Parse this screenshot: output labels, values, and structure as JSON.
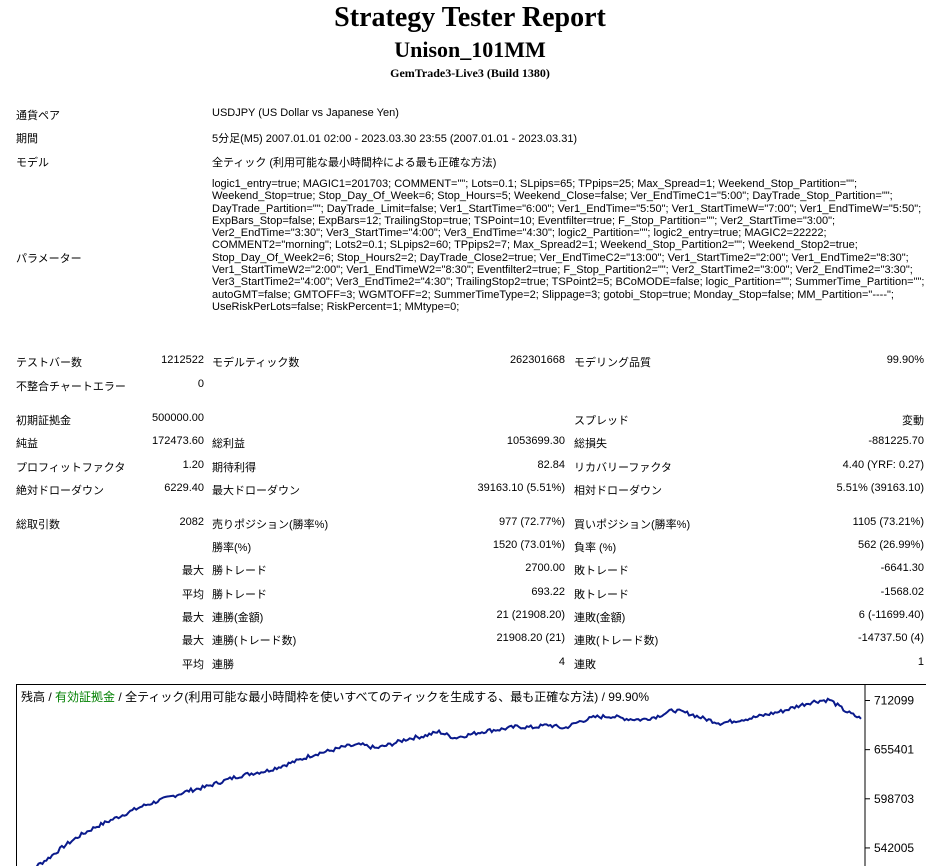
{
  "header": {
    "title": "Strategy Tester Report",
    "ea_name": "Unison_101MM",
    "server": "GemTrade3-Live3 (Build 1380)"
  },
  "info": [
    {
      "label": "通貨ペア",
      "value": "USDJPY (US Dollar vs Japanese Yen)"
    },
    {
      "label": "期間",
      "value": "5分足(M5) 2007.01.01 02:00 - 2023.03.30 23:55 (2007.01.01 - 2023.03.31)"
    },
    {
      "label": "モデル",
      "value": "全ティック (利用可能な最小時間枠による最も正確な方法)"
    }
  ],
  "params_label": "パラメーター",
  "params_text": "logic1_entry=true; MAGIC1=201703; COMMENT=\"\"; Lots=0.1; SLpips=65; TPpips=25; Max_Spread=1; Weekend_Stop_Partition=\"\"; Weekend_Stop=true; Stop_Day_Of_Week=6; Stop_Hours=5; Weekend_Close=false; Ver_EndTimeC1=\"5:00\"; DayTrade_Stop_Partition=\"\"; DayTrade_Partition=\"\"; DayTrade_Limit=false; Ver1_StartTime=\"6:00\"; Ver1_EndTime=\"5:50\"; Ver1_StartTimeW=\"7:00\"; Ver1_EndTimeW=\"5:50\"; ExpBars_Stop=false; ExpBars=12; TrailingStop=true; TSPoint=10; Eventfilter=true; F_Stop_Partition=\"\"; Ver2_StartTime=\"3:00\"; Ver2_EndTime=\"3:30\"; Ver3_StartTime=\"4:00\"; Ver3_EndTime=\"4:30\"; logic2_Partition=\"\"; logic2_entry=true; MAGIC2=22222; COMMENT2=\"morning\"; Lots2=0.1; SLpips2=60; TPpips2=7; Max_Spread2=1; Weekend_Stop_Partition2=\"\"; Weekend_Stop2=true; Stop_Day_Of_Week2=6; Stop_Hours2=2; DayTrade_Close2=true; Ver_EndTimeC2=\"13:00\"; Ver1_StartTime2=\"2:00\"; Ver1_EndTime2=\"8:30\"; Ver1_StartTimeW2=\"2:00\"; Ver1_EndTimeW2=\"8:30\"; Eventfilter2=true; F_Stop_Partition2=\"\"; Ver2_StartTime2=\"3:00\"; Ver2_EndTime2=\"3:30\"; Ver3_StartTime2=\"4:00\"; Ver3_EndTime2=\"4:30\"; TrailingStop2=true; TSPoint2=5; BCoMODE=false; logic_Partition=\"\"; SummerTime_Partition=\"\"; autoGMT=false; GMTOFF=3; WGMTOFF=2; SummerTimeType=2; Slippage=3; gotobi_Stop=true; Monday_Stop=false; MM_Partition=\"----\"; UseRiskPerLots=false; RiskPercent=1; MMtype=0;",
  "stats": {
    "bars_label": "テストバー数",
    "bars": "1212522",
    "ticks_label": "モデルティック数",
    "ticks": "262301668",
    "quality_label": "モデリング品質",
    "quality": "99.90%",
    "mismatch_label": "不整合チャートエラー",
    "mismatch": "0",
    "deposit_label": "初期証拠金",
    "deposit": "500000.00",
    "spread_label": "スプレッド",
    "spread": "変動",
    "net_label": "純益",
    "net": "172473.60",
    "gross_profit_label": "総利益",
    "gross_profit": "1053699.30",
    "gross_loss_label": "総損失",
    "gross_loss": "-881225.70",
    "pf_label": "プロフィットファクタ",
    "pf": "1.20",
    "expected_label": "期待利得",
    "expected": "82.84",
    "recovery_label": "リカバリーファクタ",
    "recovery": "4.40 (YRF: 0.27)",
    "abs_dd_label": "絶対ドローダウン",
    "abs_dd": "6229.40",
    "max_dd_label": "最大ドローダウン",
    "max_dd": "39163.10 (5.51%)",
    "rel_dd_label": "相対ドローダウン",
    "rel_dd": "5.51% (39163.10)",
    "trades_label": "総取引数",
    "trades": "2082",
    "short_label": "売りポジション(勝率%)",
    "short": "977 (72.77%)",
    "long_label": "買いポジション(勝率%)",
    "long": "1105 (73.21%)",
    "winrate_label": "勝率(%)",
    "winrate": "1520 (73.01%)",
    "lossrate_label": "負率 (%)",
    "lossrate": "562 (26.99%)",
    "max_word": "最大",
    "avg_word": "平均",
    "largest_win_label": "勝トレード",
    "largest_win": "2700.00",
    "largest_loss_label": "敗トレード",
    "largest_loss": "-6641.30",
    "avg_win_label": "勝トレード",
    "avg_win": "693.22",
    "avg_loss_label": "敗トレード",
    "avg_loss": "-1568.02",
    "max_consec_win_label": "連勝(金額)",
    "max_consec_win": "21 (21908.20)",
    "max_consec_loss_label": "連敗(金額)",
    "max_consec_loss": "6 (-11699.40)",
    "max_consec_profit_label": "連勝(トレード数)",
    "max_consec_profit": "21908.20 (21)",
    "max_consec_lossamt_label": "連敗(トレード数)",
    "max_consec_lossamt": "-14737.50 (4)",
    "avg_consec_win_label": "連勝",
    "avg_consec_win": "4",
    "avg_consec_loss_label": "連敗",
    "avg_consec_loss": "1"
  },
  "chart_title": {
    "balance": "残高",
    "sep1": " / ",
    "equity": "有効証拠金",
    "sep2": " / ",
    "model": "全ティック(利用可能な最小時間枠を使いすべてのティックを生成する、最も正確な方法) / 99.90%"
  },
  "colors": {
    "balance": "#000000",
    "equity": "#008000",
    "line": "#0a1a8c"
  },
  "chart_data": {
    "type": "line",
    "title": "",
    "ylim": [
      520000,
      730000
    ],
    "y_ticks": [
      "712099",
      "655401",
      "598703",
      "542005"
    ],
    "y_tick_values": [
      712099,
      655401,
      598703,
      542005
    ],
    "series": [
      {
        "name": "残高",
        "values": [
          500000,
          518000,
          530000,
          544000,
          556000,
          566000,
          574000,
          582000,
          590000,
          596000,
          602000,
          608000,
          612000,
          618000,
          624000,
          628000,
          631000,
          637000,
          643000,
          650000,
          654000,
          659000,
          661000,
          657000,
          662000,
          668000,
          671000,
          676000,
          669000,
          673000,
          677000,
          679000,
          682000,
          681000,
          684000,
          680000,
          688000,
          693000,
          694000,
          691000,
          690000,
          694000,
          701000,
          697000,
          691000,
          686000,
          689000,
          692000,
          696000,
          700000,
          706000,
          711000,
          713000,
          700000,
          691000
        ]
      }
    ]
  }
}
